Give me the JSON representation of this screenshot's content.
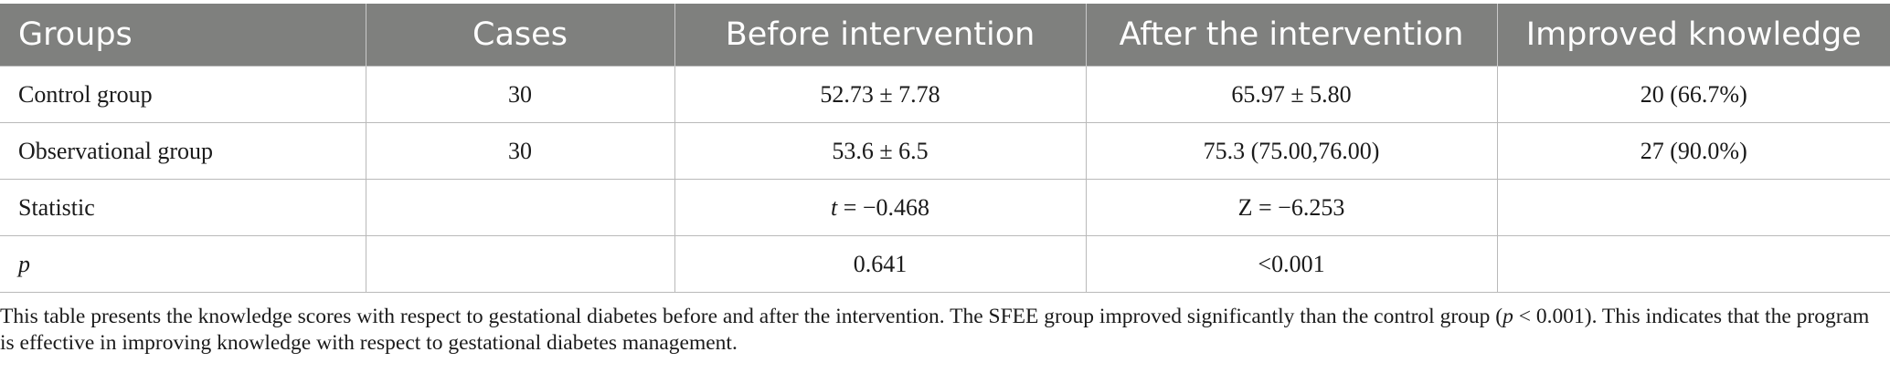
{
  "table": {
    "headers": [
      "Groups",
      "Cases",
      "Before intervention",
      "After the intervention",
      "Improved knowledge"
    ],
    "rows": [
      {
        "group": "Control group",
        "cases": "30",
        "before": "52.73 ± 7.78",
        "after": "65.97 ± 5.80",
        "improved": "20 (66.7%)"
      },
      {
        "group": "Observational group",
        "cases": "30",
        "before": "53.6 ± 6.5",
        "after": "75.3 (75.00,76.00)",
        "improved": "27 (90.0%)"
      },
      {
        "group": "Statistic",
        "cases": "",
        "before_var": "t",
        "before_rest": " = −0.468",
        "after": "Z = −6.253",
        "improved": ""
      },
      {
        "group_italic": "p",
        "cases": "",
        "before": "0.641",
        "after": "<0.001",
        "improved": ""
      }
    ]
  },
  "note": {
    "part1": "This table presents the knowledge scores with respect to gestational diabetes before and after the intervention. The SFEE group improved significantly than the control group (",
    "p_symbol": "p",
    "part2": " < 0.001). This indicates that the program is effective in improving knowledge with respect to gestational diabetes management."
  }
}
